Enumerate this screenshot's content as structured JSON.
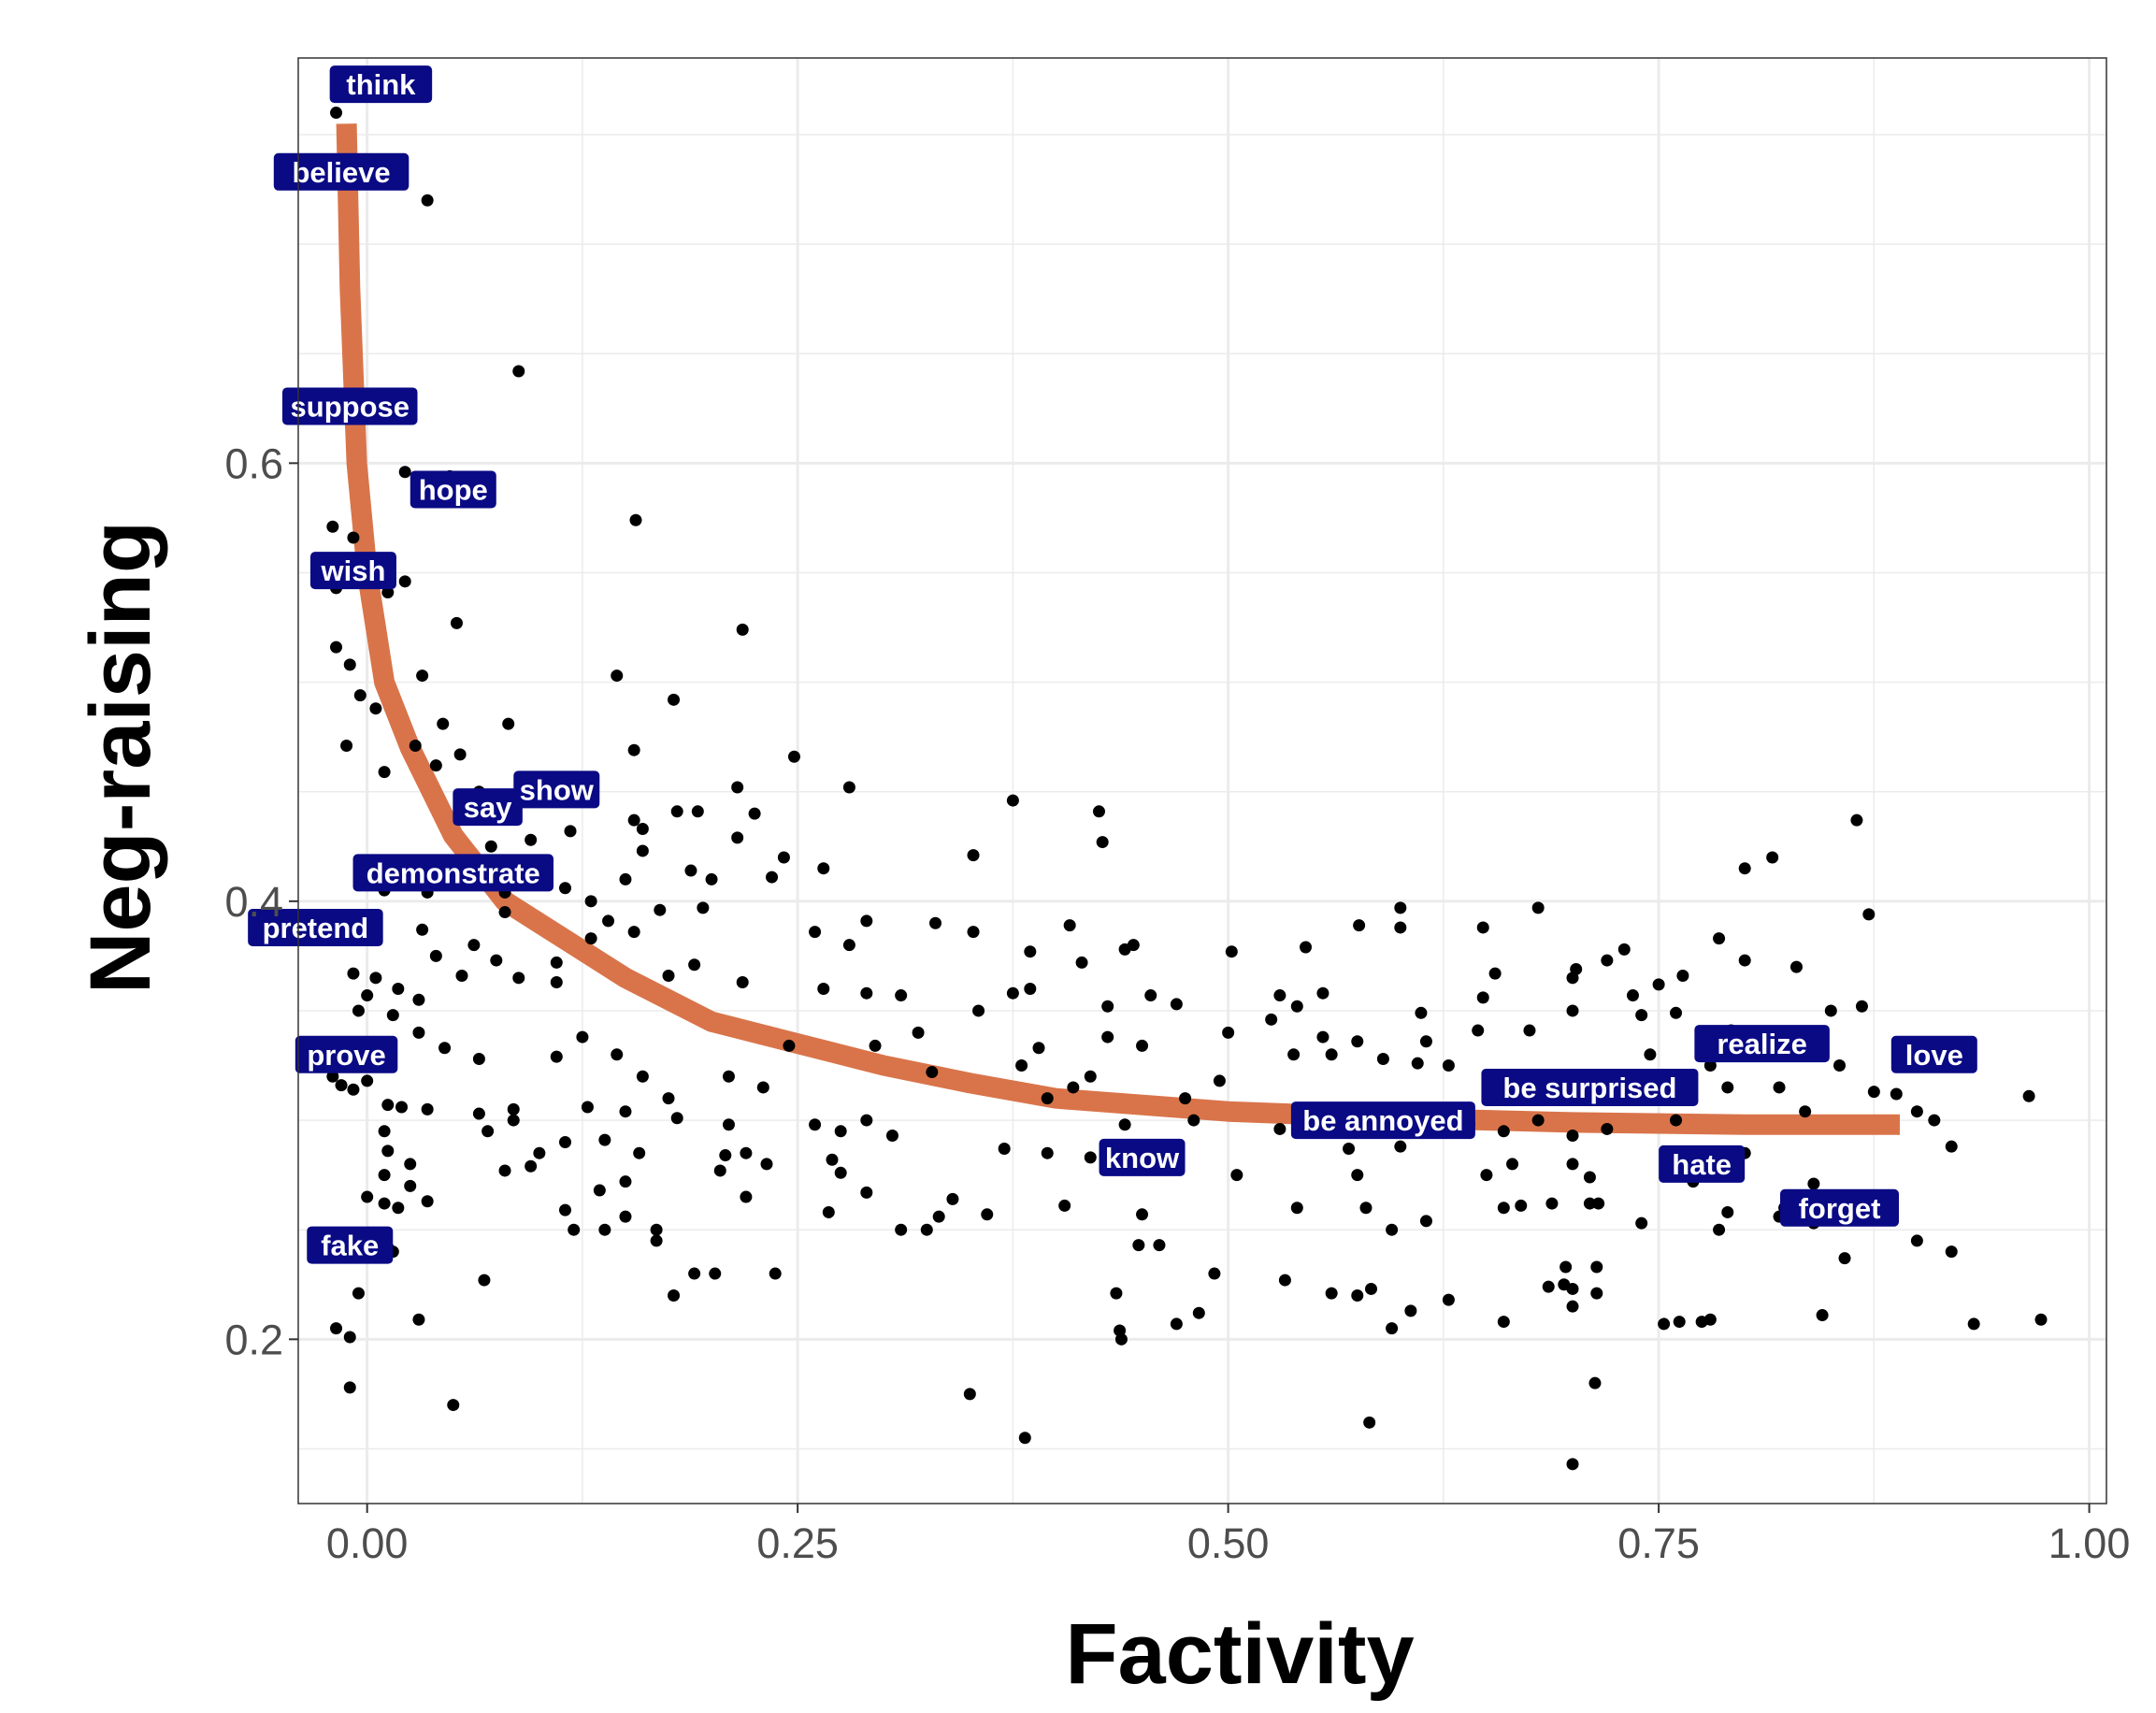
{
  "chart_data": {
    "type": "scatter",
    "title": "",
    "xlabel": "Factivity",
    "ylabel": "Neg-raising",
    "xlim": [
      -0.04,
      1.01
    ],
    "ylim": [
      0.125,
      0.785
    ],
    "xticks": [
      0,
      0.25,
      0.5,
      0.75,
      1
    ],
    "xtick_labels": [
      "0.00",
      "0.25",
      "0.50",
      "0.75",
      "1.00"
    ],
    "yticks": [
      0.2,
      0.4,
      0.6
    ],
    "ytick_labels": [
      "0.2",
      "0.4",
      "0.6"
    ],
    "grid": true,
    "legend": "none",
    "colors": {
      "points": "#000000",
      "curve": "#D9744A",
      "label_bg": "#0A0A85",
      "label_text": "#FFFFFF",
      "grid": "#EBEBEB"
    },
    "fit_curve": {
      "x": [
        -0.012,
        -0.01,
        -0.006,
        0.0,
        0.01,
        0.025,
        0.05,
        0.08,
        0.1,
        0.15,
        0.2,
        0.25,
        0.3,
        0.35,
        0.4,
        0.5,
        0.6,
        0.7,
        0.8,
        0.89
      ],
      "y": [
        0.755,
        0.68,
        0.6,
        0.55,
        0.5,
        0.47,
        0.43,
        0.4,
        0.39,
        0.365,
        0.345,
        0.335,
        0.325,
        0.317,
        0.31,
        0.304,
        0.301,
        0.299,
        0.298,
        0.298
      ]
    },
    "labeled_points": [
      {
        "label": "think",
        "x": 0.008,
        "y": 0.773
      },
      {
        "label": "believe",
        "x": -0.015,
        "y": 0.733
      },
      {
        "label": "suppose",
        "x": -0.01,
        "y": 0.626
      },
      {
        "label": "hope",
        "x": 0.05,
        "y": 0.588
      },
      {
        "label": "wish",
        "x": -0.008,
        "y": 0.551
      },
      {
        "label": "say",
        "x": 0.07,
        "y": 0.443
      },
      {
        "label": "show",
        "x": 0.11,
        "y": 0.451
      },
      {
        "label": "demonstrate",
        "x": 0.05,
        "y": 0.413
      },
      {
        "label": "pretend",
        "x": -0.03,
        "y": 0.388
      },
      {
        "label": "prove",
        "x": -0.012,
        "y": 0.33
      },
      {
        "label": "fake",
        "x": -0.01,
        "y": 0.243
      },
      {
        "label": "know",
        "x": 0.45,
        "y": 0.283
      },
      {
        "label": "be annoyed",
        "x": 0.59,
        "y": 0.3
      },
      {
        "label": "be surprised",
        "x": 0.71,
        "y": 0.315
      },
      {
        "label": "hate",
        "x": 0.775,
        "y": 0.28
      },
      {
        "label": "realize",
        "x": 0.81,
        "y": 0.335
      },
      {
        "label": "love",
        "x": 0.91,
        "y": 0.33
      },
      {
        "label": "forget",
        "x": 0.855,
        "y": 0.26
      }
    ],
    "points": [
      [
        -0.018,
        0.76
      ],
      [
        0.005,
        0.768
      ],
      [
        0.035,
        0.72
      ],
      [
        0.088,
        0.642
      ],
      [
        0.022,
        0.596
      ],
      [
        0.035,
        0.586
      ],
      [
        0.048,
        0.594
      ],
      [
        0.156,
        0.574
      ],
      [
        -0.02,
        0.571
      ],
      [
        -0.008,
        0.566
      ],
      [
        -0.002,
        0.552
      ],
      [
        -0.018,
        0.543
      ],
      [
        0.012,
        0.541
      ],
      [
        0.022,
        0.546
      ],
      [
        0.052,
        0.527
      ],
      [
        0.218,
        0.524
      ],
      [
        -0.018,
        0.516
      ],
      [
        -0.01,
        0.508
      ],
      [
        0.032,
        0.503
      ],
      [
        0.145,
        0.503
      ],
      [
        0.178,
        0.492
      ],
      [
        -0.004,
        0.494
      ],
      [
        0.005,
        0.488
      ],
      [
        0.044,
        0.481
      ],
      [
        0.082,
        0.481
      ],
      [
        -0.012,
        0.471
      ],
      [
        0.028,
        0.471
      ],
      [
        0.054,
        0.467
      ],
      [
        0.155,
        0.469
      ],
      [
        0.248,
        0.466
      ],
      [
        0.01,
        0.459
      ],
      [
        0.04,
        0.462
      ],
      [
        0.065,
        0.45
      ],
      [
        0.1,
        0.451
      ],
      [
        0.215,
        0.452
      ],
      [
        0.28,
        0.452
      ],
      [
        0.375,
        0.446
      ],
      [
        0.225,
        0.44
      ],
      [
        0.18,
        0.441
      ],
      [
        0.192,
        0.441
      ],
      [
        0.155,
        0.437
      ],
      [
        0.16,
        0.433
      ],
      [
        0.118,
        0.432
      ],
      [
        0.095,
        0.428
      ],
      [
        0.072,
        0.425
      ],
      [
        0.215,
        0.429
      ],
      [
        0.425,
        0.441
      ],
      [
        0.427,
        0.427
      ],
      [
        0.16,
        0.423
      ],
      [
        0.242,
        0.42
      ],
      [
        0.188,
        0.414
      ],
      [
        0.235,
        0.411
      ],
      [
        0.265,
        0.415
      ],
      [
        0.15,
        0.41
      ],
      [
        0.2,
        0.41
      ],
      [
        0.115,
        0.406
      ],
      [
        0.01,
        0.405
      ],
      [
        0.035,
        0.404
      ],
      [
        0.08,
        0.404
      ],
      [
        0.13,
        0.4
      ],
      [
        0.17,
        0.396
      ],
      [
        0.195,
        0.397
      ],
      [
        0.08,
        0.395
      ],
      [
        0.14,
        0.391
      ],
      [
        0.155,
        0.386
      ],
      [
        0.29,
        0.391
      ],
      [
        0.33,
        0.39
      ],
      [
        0.352,
        0.386
      ],
      [
        0.408,
        0.389
      ],
      [
        0.352,
        0.421
      ],
      [
        0.032,
        0.387
      ],
      [
        0.062,
        0.38
      ],
      [
        0.13,
        0.383
      ],
      [
        0.26,
        0.386
      ],
      [
        0.28,
        0.38
      ],
      [
        0.445,
        0.38
      ],
      [
        0.502,
        0.377
      ],
      [
        0.545,
        0.379
      ],
      [
        0.576,
        0.389
      ],
      [
        0.6,
        0.388
      ],
      [
        0.6,
        0.397
      ],
      [
        0.648,
        0.388
      ],
      [
        0.68,
        0.397
      ],
      [
        0.702,
        0.369
      ],
      [
        0.72,
        0.373
      ],
      [
        0.73,
        0.378
      ],
      [
        0.764,
        0.366
      ],
      [
        0.785,
        0.383
      ],
      [
        0.8,
        0.373
      ],
      [
        0.8,
        0.415
      ],
      [
        0.816,
        0.42
      ],
      [
        0.83,
        0.37
      ],
      [
        0.865,
        0.437
      ],
      [
        0.872,
        0.394
      ],
      [
        0.04,
        0.375
      ],
      [
        0.075,
        0.373
      ],
      [
        0.11,
        0.372
      ],
      [
        0.19,
        0.371
      ],
      [
        0.385,
        0.377
      ],
      [
        0.415,
        0.372
      ],
      [
        0.44,
        0.378
      ],
      [
        0.655,
        0.367
      ],
      [
        0.7,
        0.365
      ],
      [
        0.75,
        0.362
      ],
      [
        -0.008,
        0.367
      ],
      [
        0.005,
        0.365
      ],
      [
        0.018,
        0.36
      ],
      [
        0.03,
        0.355
      ],
      [
        0.055,
        0.366
      ],
      [
        0.088,
        0.365
      ],
      [
        0.11,
        0.363
      ],
      [
        0.175,
        0.366
      ],
      [
        0.218,
        0.363
      ],
      [
        0.265,
        0.36
      ],
      [
        0.29,
        0.358
      ],
      [
        0.31,
        0.357
      ],
      [
        0.375,
        0.358
      ],
      [
        0.385,
        0.36
      ],
      [
        0.555,
        0.358
      ],
      [
        0.54,
        0.352
      ],
      [
        0.53,
        0.357
      ],
      [
        0.648,
        0.356
      ],
      [
        0.735,
        0.357
      ],
      [
        0.5,
        0.34
      ],
      [
        0.525,
        0.346
      ],
      [
        0.47,
        0.353
      ],
      [
        0.455,
        0.357
      ],
      [
        0.43,
        0.352
      ],
      [
        0.355,
        0.35
      ],
      [
        0.32,
        0.34
      ],
      [
        0.295,
        0.334
      ],
      [
        0.245,
        0.334
      ],
      [
        0.39,
        0.333
      ],
      [
        0.43,
        0.338
      ],
      [
        0.45,
        0.334
      ],
      [
        0.555,
        0.338
      ],
      [
        0.575,
        0.336
      ],
      [
        0.612,
        0.349
      ],
      [
        0.615,
        0.336
      ],
      [
        0.645,
        0.341
      ],
      [
        0.675,
        0.341
      ],
      [
        0.7,
        0.35
      ],
      [
        0.74,
        0.348
      ],
      [
        0.76,
        0.349
      ],
      [
        0.792,
        0.341
      ],
      [
        0.85,
        0.35
      ],
      [
        0.868,
        0.352
      ],
      [
        0.0,
        0.357
      ],
      [
        -0.005,
        0.35
      ],
      [
        0.015,
        0.348
      ],
      [
        0.03,
        0.34
      ],
      [
        0.045,
        0.333
      ],
      [
        0.065,
        0.328
      ],
      [
        0.11,
        0.329
      ],
      [
        0.125,
        0.338
      ],
      [
        0.145,
        0.33
      ],
      [
        0.16,
        0.32
      ],
      [
        0.175,
        0.31
      ],
      [
        0.21,
        0.32
      ],
      [
        0.23,
        0.315
      ],
      [
        0.328,
        0.322
      ],
      [
        0.38,
        0.325
      ],
      [
        0.395,
        0.31
      ],
      [
        0.41,
        0.315
      ],
      [
        0.42,
        0.32
      ],
      [
        0.475,
        0.31
      ],
      [
        0.495,
        0.318
      ],
      [
        0.538,
        0.33
      ],
      [
        0.56,
        0.33
      ],
      [
        0.59,
        0.328
      ],
      [
        0.61,
        0.326
      ],
      [
        0.628,
        0.325
      ],
      [
        0.665,
        0.316
      ],
      [
        0.72,
        0.31
      ],
      [
        0.745,
        0.33
      ],
      [
        0.78,
        0.325
      ],
      [
        0.79,
        0.315
      ],
      [
        0.82,
        0.315
      ],
      [
        0.835,
        0.304
      ],
      [
        0.855,
        0.325
      ],
      [
        0.875,
        0.313
      ],
      [
        0.888,
        0.312
      ],
      [
        0.9,
        0.304
      ],
      [
        0.91,
        0.3
      ],
      [
        0.92,
        0.288
      ],
      [
        0.965,
        0.311
      ],
      [
        -0.02,
        0.32
      ],
      [
        -0.015,
        0.316
      ],
      [
        -0.008,
        0.314
      ],
      [
        0.0,
        0.318
      ],
      [
        0.012,
        0.307
      ],
      [
        0.02,
        0.306
      ],
      [
        0.035,
        0.305
      ],
      [
        0.065,
        0.303
      ],
      [
        0.085,
        0.305
      ],
      [
        0.128,
        0.306
      ],
      [
        0.15,
        0.304
      ],
      [
        0.18,
        0.301
      ],
      [
        0.21,
        0.298
      ],
      [
        0.26,
        0.298
      ],
      [
        0.275,
        0.295
      ],
      [
        0.29,
        0.3
      ],
      [
        0.305,
        0.293
      ],
      [
        0.44,
        0.298
      ],
      [
        0.48,
        0.3
      ],
      [
        0.53,
        0.296
      ],
      [
        0.56,
        0.299
      ],
      [
        0.58,
        0.303
      ],
      [
        0.6,
        0.298
      ],
      [
        0.64,
        0.298
      ],
      [
        0.66,
        0.295
      ],
      [
        0.68,
        0.3
      ],
      [
        0.7,
        0.293
      ],
      [
        0.72,
        0.296
      ],
      [
        0.76,
        0.3
      ],
      [
        0.01,
        0.295
      ],
      [
        0.012,
        0.286
      ],
      [
        0.025,
        0.28
      ],
      [
        0.07,
        0.295
      ],
      [
        0.085,
        0.3
      ],
      [
        0.1,
        0.285
      ],
      [
        0.115,
        0.29
      ],
      [
        0.138,
        0.291
      ],
      [
        0.158,
        0.285
      ],
      [
        0.208,
        0.284
      ],
      [
        0.22,
        0.285
      ],
      [
        0.232,
        0.28
      ],
      [
        0.27,
        0.282
      ],
      [
        0.275,
        0.276
      ],
      [
        0.37,
        0.287
      ],
      [
        0.395,
        0.285
      ],
      [
        0.42,
        0.283
      ],
      [
        0.445,
        0.28
      ],
      [
        0.47,
        0.278
      ],
      [
        0.505,
        0.275
      ],
      [
        0.57,
        0.287
      ],
      [
        0.575,
        0.275
      ],
      [
        0.6,
        0.288
      ],
      [
        0.65,
        0.275
      ],
      [
        0.665,
        0.28
      ],
      [
        0.7,
        0.28
      ],
      [
        0.71,
        0.274
      ],
      [
        0.77,
        0.272
      ],
      [
        0.8,
        0.285
      ],
      [
        0.84,
        0.271
      ],
      [
        0.01,
        0.275
      ],
      [
        0.025,
        0.27
      ],
      [
        0.08,
        0.277
      ],
      [
        0.095,
        0.279
      ],
      [
        0.15,
        0.272
      ],
      [
        0.135,
        0.268
      ],
      [
        0.205,
        0.277
      ],
      [
        0.22,
        0.265
      ],
      [
        0.29,
        0.267
      ],
      [
        0.34,
        0.264
      ],
      [
        0.0,
        0.265
      ],
      [
        0.01,
        0.262
      ],
      [
        0.018,
        0.26
      ],
      [
        0.035,
        0.263
      ],
      [
        0.115,
        0.259
      ],
      [
        0.12,
        0.25
      ],
      [
        0.138,
        0.25
      ],
      [
        0.15,
        0.256
      ],
      [
        0.168,
        0.25
      ],
      [
        0.268,
        0.258
      ],
      [
        0.31,
        0.25
      ],
      [
        0.325,
        0.25
      ],
      [
        0.332,
        0.256
      ],
      [
        0.36,
        0.257
      ],
      [
        0.405,
        0.261
      ],
      [
        0.45,
        0.257
      ],
      [
        0.54,
        0.26
      ],
      [
        0.58,
        0.26
      ],
      [
        0.595,
        0.25
      ],
      [
        0.615,
        0.254
      ],
      [
        0.66,
        0.26
      ],
      [
        0.67,
        0.261
      ],
      [
        0.688,
        0.262
      ],
      [
        0.71,
        0.262
      ],
      [
        0.715,
        0.262
      ],
      [
        0.74,
        0.253
      ],
      [
        0.785,
        0.25
      ],
      [
        0.79,
        0.258
      ],
      [
        0.82,
        0.256
      ],
      [
        0.823,
        0.26
      ],
      [
        0.84,
        0.253
      ],
      [
        0.9,
        0.245
      ],
      [
        0.92,
        0.24
      ],
      [
        0.858,
        0.237
      ],
      [
        0.015,
        0.24
      ],
      [
        0.168,
        0.245
      ],
      [
        0.19,
        0.23
      ],
      [
        0.202,
        0.23
      ],
      [
        0.237,
        0.23
      ],
      [
        0.068,
        0.227
      ],
      [
        0.012,
        0.242
      ],
      [
        0.448,
        0.243
      ],
      [
        0.46,
        0.243
      ],
      [
        0.492,
        0.23
      ],
      [
        0.533,
        0.227
      ],
      [
        0.56,
        0.221
      ],
      [
        0.575,
        0.22
      ],
      [
        0.583,
        0.223
      ],
      [
        0.628,
        0.218
      ],
      [
        0.695,
        0.225
      ],
      [
        0.7,
        0.223
      ],
      [
        0.714,
        0.221
      ],
      [
        0.714,
        0.233
      ],
      [
        0.696,
        0.233
      ],
      [
        0.686,
        0.224
      ],
      [
        0.435,
        0.221
      ],
      [
        0.178,
        0.22
      ],
      [
        -0.005,
        0.221
      ],
      [
        -0.018,
        0.205
      ],
      [
        -0.01,
        0.201
      ],
      [
        0.03,
        0.209
      ],
      [
        0.437,
        0.204
      ],
      [
        0.438,
        0.2
      ],
      [
        0.47,
        0.207
      ],
      [
        0.483,
        0.212
      ],
      [
        0.595,
        0.205
      ],
      [
        0.606,
        0.213
      ],
      [
        0.66,
        0.208
      ],
      [
        0.7,
        0.215
      ],
      [
        0.753,
        0.207
      ],
      [
        0.762,
        0.208
      ],
      [
        0.775,
        0.208
      ],
      [
        0.78,
        0.209
      ],
      [
        0.845,
        0.211
      ],
      [
        0.933,
        0.207
      ],
      [
        0.972,
        0.209
      ],
      [
        -0.01,
        0.178
      ],
      [
        0.05,
        0.17
      ],
      [
        0.35,
        0.175
      ],
      [
        0.382,
        0.155
      ],
      [
        0.582,
        0.162
      ],
      [
        0.7,
        0.143
      ],
      [
        0.713,
        0.18
      ]
    ]
  }
}
